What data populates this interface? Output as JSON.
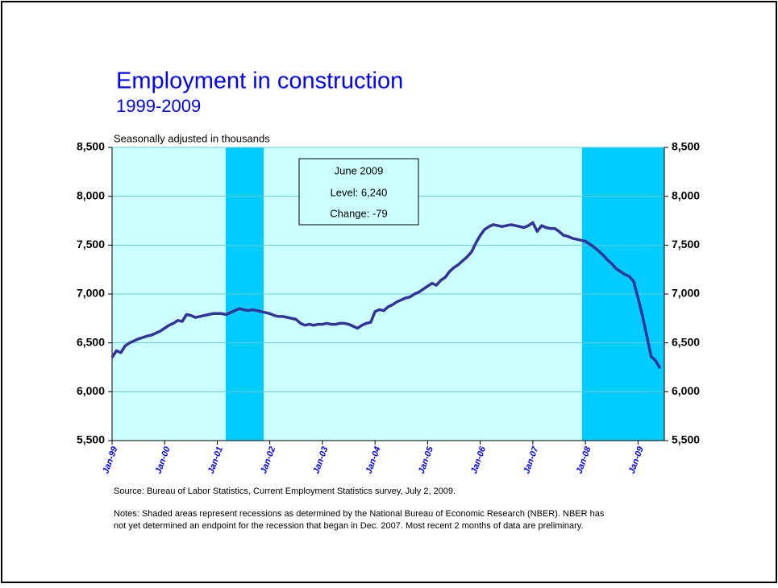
{
  "chart_data": {
    "type": "line",
    "title": "Employment in construction",
    "subtitle": "1999-2009",
    "y_axis_label": "Seasonally adjusted in thousands",
    "annotation": [
      "June 2009",
      "Level: 6,240",
      "Change: -79"
    ],
    "source": "Source:  Bureau of Labor Statistics, Current Employment Statistics survey, July 2, 2009.",
    "notes": [
      "Notes: Shaded areas represent recessions as determined by the National Bureau of Economic Research (NBER). NBER has",
      "not yet determined an endpoint for the recession that began in Dec. 2007. Most recent 2 months of data are preliminary."
    ],
    "categories": [
      "Jan-99",
      null,
      null,
      null,
      null,
      null,
      null,
      null,
      null,
      null,
      null,
      null,
      "Jan-00",
      null,
      null,
      null,
      null,
      null,
      null,
      null,
      null,
      null,
      null,
      null,
      "Jan-01",
      null,
      null,
      null,
      null,
      null,
      null,
      null,
      null,
      null,
      null,
      null,
      "Jan-02",
      null,
      null,
      null,
      null,
      null,
      null,
      null,
      null,
      null,
      null,
      null,
      "Jan-03",
      null,
      null,
      null,
      null,
      null,
      null,
      null,
      null,
      null,
      null,
      null,
      "Jan-04",
      null,
      null,
      null,
      null,
      null,
      null,
      null,
      null,
      null,
      null,
      null,
      "Jan-05",
      null,
      null,
      null,
      null,
      null,
      null,
      null,
      null,
      null,
      null,
      null,
      "Jan-06",
      null,
      null,
      null,
      null,
      null,
      null,
      null,
      null,
      null,
      null,
      null,
      "Jan-07",
      null,
      null,
      null,
      null,
      null,
      null,
      null,
      null,
      null,
      null,
      null,
      "Jan-08",
      null,
      null,
      null,
      null,
      null,
      null,
      null,
      null,
      null,
      null,
      null,
      "Jan-09",
      null,
      null,
      null,
      null,
      null
    ],
    "values": [
      6350,
      6420,
      6400,
      6470,
      6500,
      6520,
      6540,
      6555,
      6570,
      6580,
      6600,
      6620,
      6650,
      6680,
      6700,
      6730,
      6720,
      6790,
      6780,
      6760,
      6770,
      6780,
      6790,
      6800,
      6800,
      6800,
      6790,
      6810,
      6830,
      6850,
      6840,
      6830,
      6840,
      6830,
      6820,
      6810,
      6800,
      6780,
      6770,
      6770,
      6760,
      6750,
      6740,
      6700,
      6680,
      6690,
      6680,
      6690,
      6690,
      6700,
      6690,
      6690,
      6700,
      6700,
      6690,
      6670,
      6650,
      6680,
      6700,
      6710,
      6820,
      6840,
      6830,
      6870,
      6890,
      6920,
      6940,
      6960,
      6970,
      7000,
      7020,
      7050,
      7080,
      7110,
      7090,
      7140,
      7170,
      7230,
      7270,
      7300,
      7340,
      7380,
      7430,
      7520,
      7600,
      7660,
      7690,
      7710,
      7700,
      7690,
      7700,
      7710,
      7700,
      7690,
      7680,
      7700,
      7730,
      7640,
      7700,
      7680,
      7670,
      7670,
      7640,
      7600,
      7590,
      7570,
      7560,
      7550,
      7540,
      7510,
      7480,
      7440,
      7400,
      7350,
      7310,
      7260,
      7230,
      7200,
      7180,
      7130,
      6960,
      6780,
      6570,
      6360,
      6319,
      6240
    ],
    "color": "#333399",
    "ylim": [
      5500,
      8500
    ],
    "yticks": [
      {
        "value": 5500,
        "label": "5,500"
      },
      {
        "value": 6000,
        "label": "6,000"
      },
      {
        "value": 6500,
        "label": "6,500"
      },
      {
        "value": 7000,
        "label": "7,000"
      },
      {
        "value": 7500,
        "label": "7,500"
      },
      {
        "value": 8000,
        "label": "8,000"
      },
      {
        "value": 8500,
        "label": "8,500"
      }
    ],
    "grid": true
  }
}
